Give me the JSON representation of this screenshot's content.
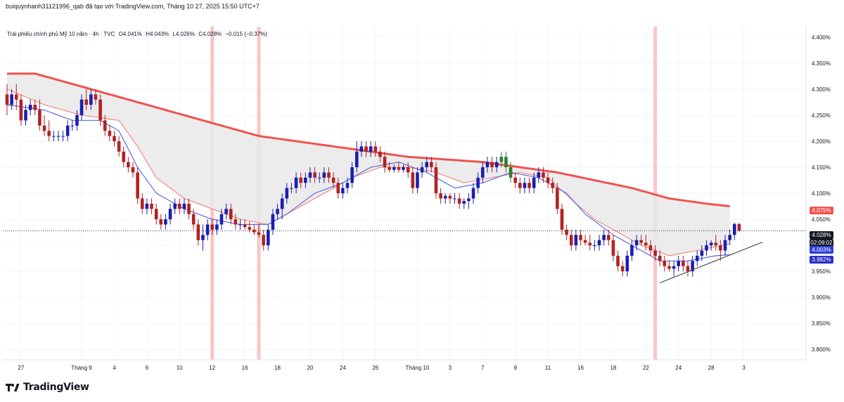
{
  "credit": "buiquynhanh31121996_qab đã tạo với TradingView.com, Tháng 10 27, 2025 15:50 UTC+7",
  "legend": {
    "symbol": "Trái phiếu chính phủ Mỹ 10 năm · 4h · TVC",
    "open": "O4.041%",
    "high": "H4.043%",
    "low": "L4.026%",
    "close": "C4.028%",
    "change": "−0.015 (−0.37%)"
  },
  "brand": "TradingView",
  "price_labels": {
    "ma_red": "4.075%",
    "last": "4.028%",
    "countdown": "02:09:02",
    "ma_blue1": "4.003%",
    "ma_blue2": "3.982%"
  },
  "colors": {
    "up": "#1a1eb0",
    "down": "#b22222",
    "ma_slow": "#ef5350",
    "ma_fast": "#f28b82",
    "ma_blue": "#5c6bde",
    "band_fill": "#e9e9e9",
    "session_marker": "#f8b8b8",
    "trendline": "#555555"
  },
  "chart_data": {
    "type": "candlestick",
    "y_axis": {
      "min": 3.78,
      "max": 4.42,
      "ticks": [
        "4.400%",
        "4.350%",
        "4.300%",
        "4.250%",
        "4.200%",
        "4.150%",
        "4.100%",
        "4.050%",
        "4.000%",
        "3.950%",
        "3.900%",
        "3.850%",
        "3.800%"
      ],
      "tick_values": [
        4.4,
        4.35,
        4.3,
        4.25,
        4.2,
        4.15,
        4.1,
        4.05,
        4.0,
        3.95,
        3.9,
        3.85,
        3.8
      ]
    },
    "x_axis": {
      "labels": [
        "27",
        "Tháng 9",
        "4",
        "6",
        "10",
        "12",
        "16",
        "18",
        "20",
        "24",
        "26",
        "Tháng 10",
        "3",
        "7",
        "9",
        "11",
        "16",
        "18",
        "22",
        "24",
        "28",
        "3"
      ],
      "label_bar_index": [
        3,
        16,
        23,
        30,
        37,
        44,
        51,
        58,
        65,
        72,
        79,
        88,
        95,
        102,
        109,
        116,
        123,
        130,
        137,
        144,
        151,
        158
      ]
    },
    "grid": true,
    "highlight_bars": [
      44,
      54,
      139
    ],
    "last_price": 4.028,
    "candles": [
      [
        4.29,
        4.31,
        4.25,
        4.27
      ],
      [
        4.27,
        4.3,
        4.26,
        4.29
      ],
      [
        4.29,
        4.31,
        4.26,
        4.28
      ],
      [
        4.28,
        4.29,
        4.23,
        4.24
      ],
      [
        4.24,
        4.27,
        4.23,
        4.26
      ],
      [
        4.26,
        4.28,
        4.25,
        4.27
      ],
      [
        4.27,
        4.28,
        4.25,
        4.26
      ],
      [
        4.26,
        4.28,
        4.22,
        4.23
      ],
      [
        4.23,
        4.25,
        4.21,
        4.22
      ],
      [
        4.22,
        4.24,
        4.2,
        4.21
      ],
      [
        4.21,
        4.22,
        4.2,
        4.21
      ],
      [
        4.21,
        4.22,
        4.2,
        4.21
      ],
      [
        4.21,
        4.22,
        4.2,
        4.21
      ],
      [
        4.21,
        4.24,
        4.2,
        4.23
      ],
      [
        4.23,
        4.24,
        4.22,
        4.23
      ],
      [
        4.23,
        4.26,
        4.22,
        4.25
      ],
      [
        4.25,
        4.29,
        4.24,
        4.28
      ],
      [
        4.28,
        4.3,
        4.26,
        4.27
      ],
      [
        4.27,
        4.3,
        4.26,
        4.29
      ],
      [
        4.29,
        4.3,
        4.27,
        4.28
      ],
      [
        4.28,
        4.29,
        4.23,
        4.24
      ],
      [
        4.24,
        4.25,
        4.21,
        4.22
      ],
      [
        4.22,
        4.23,
        4.2,
        4.21
      ],
      [
        4.21,
        4.22,
        4.19,
        4.2
      ],
      [
        4.2,
        4.21,
        4.17,
        4.18
      ],
      [
        4.18,
        4.19,
        4.15,
        4.16
      ],
      [
        4.16,
        4.17,
        4.14,
        4.15
      ],
      [
        4.15,
        4.16,
        4.13,
        4.14
      ],
      [
        4.14,
        4.15,
        4.08,
        4.09
      ],
      [
        4.09,
        4.1,
        4.06,
        4.07
      ],
      [
        4.07,
        4.09,
        4.06,
        4.08
      ],
      [
        4.08,
        4.09,
        4.06,
        4.07
      ],
      [
        4.07,
        4.08,
        4.04,
        4.05
      ],
      [
        4.05,
        4.06,
        4.03,
        4.04
      ],
      [
        4.04,
        4.06,
        4.03,
        4.05
      ],
      [
        4.05,
        4.08,
        4.04,
        4.07
      ],
      [
        4.07,
        4.09,
        4.06,
        4.08
      ],
      [
        4.08,
        4.09,
        4.06,
        4.07
      ],
      [
        4.07,
        4.09,
        4.06,
        4.08
      ],
      [
        4.08,
        4.09,
        4.05,
        4.06
      ],
      [
        4.06,
        4.07,
        4.03,
        4.04
      ],
      [
        4.04,
        4.05,
        4.0,
        4.01
      ],
      [
        4.01,
        4.04,
        3.99,
        4.02
      ],
      [
        4.02,
        4.05,
        4.01,
        4.04
      ],
      [
        4.04,
        4.05,
        4.02,
        4.03
      ],
      [
        4.03,
        4.05,
        4.02,
        4.04
      ],
      [
        4.04,
        4.07,
        4.03,
        4.06
      ],
      [
        4.06,
        4.08,
        4.05,
        4.07
      ],
      [
        4.07,
        4.08,
        4.04,
        4.05
      ],
      [
        4.05,
        4.06,
        4.03,
        4.04
      ],
      [
        4.04,
        4.05,
        4.03,
        4.04
      ],
      [
        4.04,
        4.05,
        4.03,
        4.035
      ],
      [
        4.035,
        4.045,
        4.025,
        4.03
      ],
      [
        4.03,
        4.04,
        4.02,
        4.025
      ],
      [
        4.025,
        4.04,
        4.015,
        4.02
      ],
      [
        4.02,
        4.03,
        3.99,
        4.0
      ],
      [
        4.0,
        4.04,
        3.99,
        4.03
      ],
      [
        4.03,
        4.07,
        4.02,
        4.06
      ],
      [
        4.06,
        4.08,
        4.05,
        4.07
      ],
      [
        4.07,
        4.1,
        4.05,
        4.09
      ],
      [
        4.09,
        4.12,
        4.08,
        4.11
      ],
      [
        4.11,
        4.12,
        4.1,
        4.11
      ],
      [
        4.11,
        4.14,
        4.1,
        4.13
      ],
      [
        4.13,
        4.14,
        4.11,
        4.12
      ],
      [
        4.12,
        4.14,
        4.11,
        4.13
      ],
      [
        4.13,
        4.15,
        4.12,
        4.14
      ],
      [
        4.14,
        4.15,
        4.12,
        4.13
      ],
      [
        4.13,
        4.14,
        4.12,
        4.13
      ],
      [
        4.13,
        4.15,
        4.12,
        4.14
      ],
      [
        4.14,
        4.15,
        4.12,
        4.13
      ],
      [
        4.13,
        4.14,
        4.11,
        4.12
      ],
      [
        4.12,
        4.13,
        4.09,
        4.1
      ],
      [
        4.1,
        4.12,
        4.09,
        4.11
      ],
      [
        4.11,
        4.13,
        4.1,
        4.12
      ],
      [
        4.12,
        4.16,
        4.11,
        4.15
      ],
      [
        4.15,
        4.2,
        4.14,
        4.18
      ],
      [
        4.18,
        4.2,
        4.17,
        4.19
      ],
      [
        4.19,
        4.2,
        4.17,
        4.18
      ],
      [
        4.18,
        4.2,
        4.17,
        4.19
      ],
      [
        4.19,
        4.2,
        4.17,
        4.18
      ],
      [
        4.18,
        4.19,
        4.16,
        4.17
      ],
      [
        4.17,
        4.18,
        4.14,
        4.15
      ],
      [
        4.15,
        4.16,
        4.14,
        4.145
      ],
      [
        4.145,
        4.155,
        4.14,
        4.15
      ],
      [
        4.15,
        4.16,
        4.14,
        4.145
      ],
      [
        4.145,
        4.155,
        4.14,
        4.15
      ],
      [
        4.15,
        4.16,
        4.13,
        4.14
      ],
      [
        4.14,
        4.15,
        4.1,
        4.11
      ],
      [
        4.11,
        4.15,
        4.1,
        4.14
      ],
      [
        4.14,
        4.16,
        4.13,
        4.15
      ],
      [
        4.15,
        4.17,
        4.14,
        4.16
      ],
      [
        4.16,
        4.17,
        4.14,
        4.15
      ],
      [
        4.15,
        4.16,
        4.09,
        4.1
      ],
      [
        4.1,
        4.11,
        4.08,
        4.09
      ],
      [
        4.09,
        4.1,
        4.08,
        4.095
      ],
      [
        4.095,
        4.1,
        4.08,
        4.09
      ],
      [
        4.09,
        4.1,
        4.08,
        4.09
      ],
      [
        4.09,
        4.1,
        4.07,
        4.08
      ],
      [
        4.08,
        4.09,
        4.07,
        4.085
      ],
      [
        4.085,
        4.1,
        4.07,
        4.09
      ],
      [
        4.09,
        4.12,
        4.08,
        4.11
      ],
      [
        4.11,
        4.14,
        4.1,
        4.13
      ],
      [
        4.13,
        4.16,
        4.12,
        4.15
      ],
      [
        4.15,
        4.17,
        4.14,
        4.16
      ],
      [
        4.16,
        4.17,
        4.14,
        4.15
      ],
      [
        4.15,
        4.17,
        4.14,
        4.16
      ],
      [
        4.16,
        4.18,
        4.15,
        4.17
      ],
      [
        4.17,
        4.18,
        4.14,
        4.15
      ],
      [
        4.15,
        4.16,
        4.12,
        4.13
      ],
      [
        4.13,
        4.14,
        4.11,
        4.12
      ],
      [
        4.12,
        4.13,
        4.1,
        4.11
      ],
      [
        4.11,
        4.13,
        4.1,
        4.12
      ],
      [
        4.12,
        4.13,
        4.1,
        4.11
      ],
      [
        4.11,
        4.14,
        4.1,
        4.13
      ],
      [
        4.13,
        4.15,
        4.12,
        4.14
      ],
      [
        4.14,
        4.15,
        4.12,
        4.13
      ],
      [
        4.13,
        4.14,
        4.11,
        4.12
      ],
      [
        4.12,
        4.13,
        4.1,
        4.11
      ],
      [
        4.11,
        4.12,
        4.06,
        4.07
      ],
      [
        4.07,
        4.08,
        4.02,
        4.03
      ],
      [
        4.03,
        4.04,
        4.01,
        4.02
      ],
      [
        4.02,
        4.03,
        3.99,
        4.0
      ],
      [
        4.0,
        4.03,
        3.99,
        4.02
      ],
      [
        4.02,
        4.03,
        4.0,
        4.01
      ],
      [
        4.01,
        4.02,
        4.0,
        4.005
      ],
      [
        4.005,
        4.02,
        3.99,
        4.0
      ],
      [
        4.0,
        4.01,
        3.99,
        4.0
      ],
      [
        4.0,
        4.02,
        3.99,
        4.01
      ],
      [
        4.01,
        4.03,
        4.0,
        4.02
      ],
      [
        4.02,
        4.03,
        4.0,
        4.01
      ],
      [
        4.01,
        4.02,
        3.97,
        3.98
      ],
      [
        3.98,
        3.99,
        3.95,
        3.96
      ],
      [
        3.96,
        3.97,
        3.94,
        3.95
      ],
      [
        3.95,
        3.99,
        3.94,
        3.98
      ],
      [
        3.98,
        4.01,
        3.97,
        4.0
      ],
      [
        4.0,
        4.02,
        3.99,
        4.01
      ],
      [
        4.01,
        4.02,
        4.0,
        4.005
      ],
      [
        4.005,
        4.02,
        3.99,
        4.0
      ],
      [
        4.0,
        4.01,
        3.98,
        3.99
      ],
      [
        3.99,
        4.0,
        3.97,
        3.98
      ],
      [
        3.98,
        3.99,
        3.96,
        3.97
      ],
      [
        3.97,
        3.98,
        3.95,
        3.96
      ],
      [
        3.96,
        3.97,
        3.95,
        3.955
      ],
      [
        3.955,
        3.97,
        3.94,
        3.96
      ],
      [
        3.96,
        3.98,
        3.95,
        3.97
      ],
      [
        3.97,
        3.98,
        3.95,
        3.96
      ],
      [
        3.96,
        3.97,
        3.94,
        3.95
      ],
      [
        3.95,
        3.98,
        3.94,
        3.97
      ],
      [
        3.97,
        3.99,
        3.96,
        3.98
      ],
      [
        3.98,
        4.0,
        3.97,
        3.99
      ],
      [
        3.99,
        4.01,
        3.98,
        4.0
      ],
      [
        4.0,
        4.01,
        3.99,
        4.005
      ],
      [
        4.005,
        4.02,
        3.99,
        4.0
      ],
      [
        4.0,
        4.01,
        3.97,
        3.99
      ],
      [
        3.99,
        4.02,
        3.98,
        4.01
      ],
      [
        4.01,
        4.03,
        4.0,
        4.02
      ],
      [
        4.02,
        4.043,
        4.01,
        4.041
      ],
      [
        4.041,
        4.043,
        4.026,
        4.028
      ]
    ],
    "ma_slow": [
      [
        0,
        4.33
      ],
      [
        6,
        4.33
      ],
      [
        14,
        4.31
      ],
      [
        22,
        4.29
      ],
      [
        30,
        4.27
      ],
      [
        38,
        4.25
      ],
      [
        46,
        4.23
      ],
      [
        54,
        4.21
      ],
      [
        62,
        4.2
      ],
      [
        70,
        4.19
      ],
      [
        78,
        4.18
      ],
      [
        86,
        4.17
      ],
      [
        94,
        4.165
      ],
      [
        102,
        4.16
      ],
      [
        110,
        4.15
      ],
      [
        118,
        4.14
      ],
      [
        126,
        4.125
      ],
      [
        134,
        4.11
      ],
      [
        142,
        4.09
      ],
      [
        150,
        4.08
      ],
      [
        155,
        4.075
      ]
    ],
    "ma_fast": [
      [
        0,
        4.3
      ],
      [
        8,
        4.27
      ],
      [
        16,
        4.25
      ],
      [
        24,
        4.24
      ],
      [
        28,
        4.19
      ],
      [
        32,
        4.13
      ],
      [
        38,
        4.09
      ],
      [
        44,
        4.07
      ],
      [
        50,
        4.05
      ],
      [
        56,
        4.04
      ],
      [
        62,
        4.07
      ],
      [
        68,
        4.1
      ],
      [
        74,
        4.13
      ],
      [
        80,
        4.15
      ],
      [
        86,
        4.15
      ],
      [
        92,
        4.14
      ],
      [
        98,
        4.12
      ],
      [
        104,
        4.13
      ],
      [
        110,
        4.14
      ],
      [
        116,
        4.13
      ],
      [
        122,
        4.08
      ],
      [
        126,
        4.05
      ],
      [
        130,
        4.03
      ],
      [
        136,
        4.0
      ],
      [
        142,
        3.98
      ],
      [
        148,
        3.99
      ],
      [
        155,
        4.003
      ]
    ],
    "ma_blue": [
      [
        0,
        4.27
      ],
      [
        8,
        4.26
      ],
      [
        14,
        4.24
      ],
      [
        20,
        4.24
      ],
      [
        24,
        4.22
      ],
      [
        28,
        4.15
      ],
      [
        32,
        4.1
      ],
      [
        38,
        4.07
      ],
      [
        44,
        4.05
      ],
      [
        50,
        4.04
      ],
      [
        56,
        4.04
      ],
      [
        60,
        4.06
      ],
      [
        66,
        4.1
      ],
      [
        72,
        4.12
      ],
      [
        78,
        4.15
      ],
      [
        84,
        4.16
      ],
      [
        90,
        4.14
      ],
      [
        96,
        4.11
      ],
      [
        102,
        4.12
      ],
      [
        108,
        4.14
      ],
      [
        114,
        4.13
      ],
      [
        120,
        4.1
      ],
      [
        124,
        4.06
      ],
      [
        130,
        4.02
      ],
      [
        134,
        4.0
      ],
      [
        140,
        3.97
      ],
      [
        146,
        3.97
      ],
      [
        152,
        3.98
      ],
      [
        155,
        3.982
      ]
    ],
    "trendline": [
      [
        140,
        3.928
      ],
      [
        162,
        4.006
      ]
    ]
  }
}
